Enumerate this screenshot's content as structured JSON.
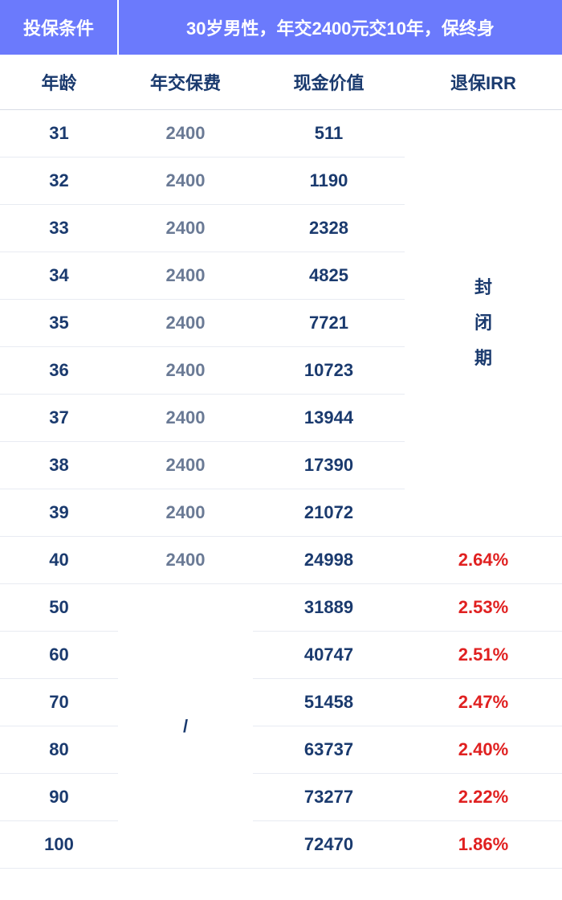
{
  "header": {
    "condition_label": "投保条件",
    "condition_value": "30岁男性，年交2400元交10年，保终身"
  },
  "columns": {
    "age": "年龄",
    "premium": "年交保费",
    "cash_value": "现金价值",
    "surrender_irr": "退保IRR"
  },
  "lockup_label_lines": [
    "封",
    "闭",
    "期"
  ],
  "slash_label": "/",
  "rows_lockup": [
    {
      "age": "31",
      "premium": "2400",
      "cash": "511"
    },
    {
      "age": "32",
      "premium": "2400",
      "cash": "1190"
    },
    {
      "age": "33",
      "premium": "2400",
      "cash": "2328"
    },
    {
      "age": "34",
      "premium": "2400",
      "cash": "4825"
    },
    {
      "age": "35",
      "premium": "2400",
      "cash": "7721"
    },
    {
      "age": "36",
      "premium": "2400",
      "cash": "10723"
    },
    {
      "age": "37",
      "premium": "2400",
      "cash": "13944"
    },
    {
      "age": "38",
      "premium": "2400",
      "cash": "17390"
    },
    {
      "age": "39",
      "premium": "2400",
      "cash": "21072"
    }
  ],
  "row_transition": {
    "age": "40",
    "premium": "2400",
    "cash": "24998",
    "irr": "2.64%"
  },
  "rows_later": [
    {
      "age": "50",
      "cash": "31889",
      "irr": "2.53%"
    },
    {
      "age": "60",
      "cash": "40747",
      "irr": "2.51%"
    },
    {
      "age": "70",
      "cash": "51458",
      "irr": "2.47%"
    },
    {
      "age": "80",
      "cash": "63737",
      "irr": "2.40%"
    },
    {
      "age": "90",
      "cash": "73277",
      "irr": "2.22%"
    },
    {
      "age": "100",
      "cash": "72470",
      "irr": "1.86%"
    }
  ],
  "colors": {
    "header_bg": "#6b7afc",
    "header_text": "#ffffff",
    "body_text": "#1a3a6e",
    "muted_text": "#6a7a95",
    "irr_text": "#e02020",
    "row_border": "#e8ebf2"
  }
}
